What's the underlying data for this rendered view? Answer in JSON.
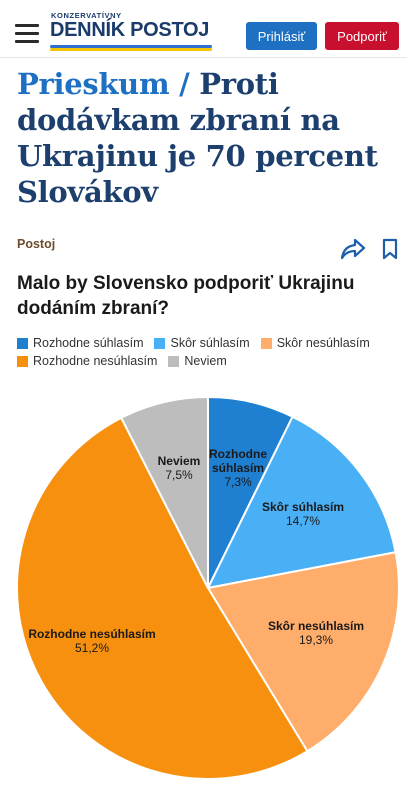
{
  "header": {
    "logo_small": "KONZERVATÍVNY",
    "logo_main": "DENNÍK POSTOJ",
    "login_label": "Prihlásiť",
    "support_label": "Podporiť"
  },
  "article": {
    "kicker": "Prieskum /",
    "title": "Proti dodávkam zbraní na Ukrajinu je 70 percent Slovákov",
    "author": "Postoj"
  },
  "icons": {
    "menu": "hamburger-icon",
    "share": "share-icon",
    "bookmark": "bookmark-icon"
  },
  "colors": {
    "rozhodne_suhlasim": "#1f7fd1",
    "skor_suhlasim": "#4ab0f5",
    "skor_nesuhlasim": "#ffad6b",
    "rozhodne_nesuhlasim": "#f7900f",
    "neviem": "#bdbdbd"
  },
  "chart_data": {
    "type": "pie",
    "title": "Malo by Slovensko podporiť Ukrajinu dodáním zbraní?",
    "legend": [
      "Rozhodne súhlasím",
      "Skôr súhlasím",
      "Skôr nesúhlasím",
      "Rozhodne nesúhlasím",
      "Neviem"
    ],
    "slices": [
      {
        "name": "Rozhodne súhlasím",
        "label_lines": [
          "Rozhodne",
          "súhlasím"
        ],
        "value": 7.3,
        "value_label": "7,3%",
        "color": "#1f7fd1"
      },
      {
        "name": "Skôr súhlasím",
        "label_lines": [
          "Skôr súhlasím"
        ],
        "value": 14.7,
        "value_label": "14,7%",
        "color": "#4ab0f5"
      },
      {
        "name": "Skôr nesúhlasím",
        "label_lines": [
          "Skôr nesúhlasím"
        ],
        "value": 19.3,
        "value_label": "19,3%",
        "color": "#ffad6b"
      },
      {
        "name": "Rozhodne nesúhlasím",
        "label_lines": [
          "Rozhodne nesúhlasím"
        ],
        "value": 51.2,
        "value_label": "51,2%",
        "color": "#f7900f"
      },
      {
        "name": "Neviem",
        "label_lines": [
          "Neviem"
        ],
        "value": 7.5,
        "value_label": "7,5%",
        "color": "#bdbdbd"
      }
    ],
    "legend_position": "top"
  }
}
